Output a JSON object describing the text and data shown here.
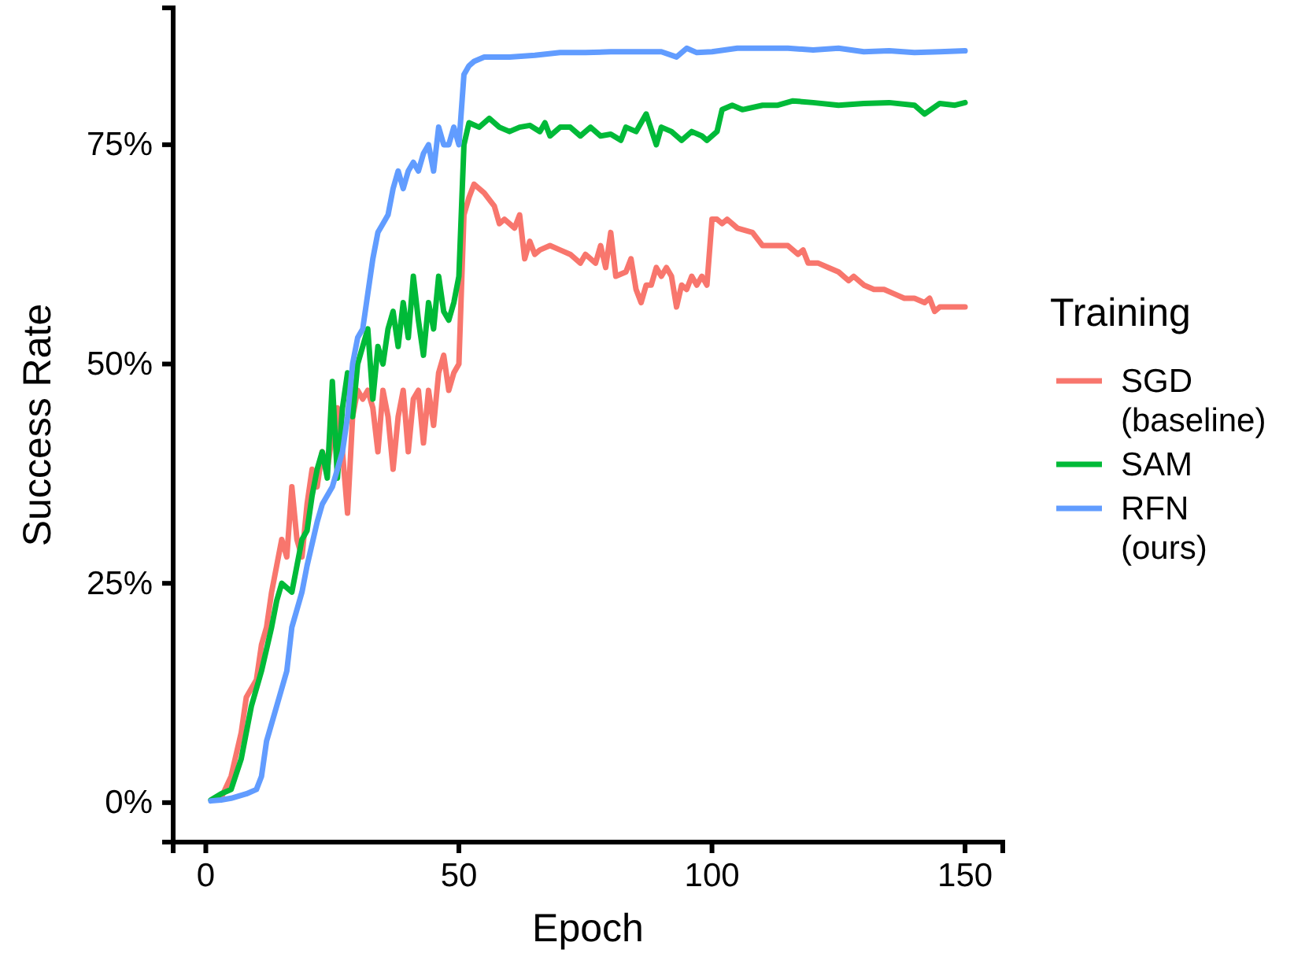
{
  "chart_data": {
    "type": "line",
    "xlabel": "Epoch",
    "ylabel": "Success Rate",
    "legend_title": "Training",
    "legend": "right",
    "grid": false,
    "marker": "none",
    "line_style": "solid",
    "xlim": [
      -6.45,
      157.45
    ],
    "xticks": [
      0,
      50,
      100,
      150
    ],
    "ylim": [
      -4.5,
      90.6
    ],
    "yticks": [
      {
        "value": 0,
        "label": "0%"
      },
      {
        "value": 25,
        "label": "25%"
      },
      {
        "value": 50,
        "label": "50%"
      },
      {
        "value": 75,
        "label": "75%"
      }
    ],
    "series": [
      {
        "name": "SGD\n(baseline)",
        "color": "#f8766d",
        "x": [
          3,
          5,
          7,
          8,
          10,
          11,
          12,
          13,
          14,
          15,
          16,
          17,
          18,
          19,
          20,
          21,
          22,
          23,
          24,
          25,
          26,
          27,
          28,
          29,
          30,
          31,
          32,
          33,
          34,
          35,
          36,
          37,
          38,
          39,
          40,
          41,
          42,
          43,
          44,
          45,
          46,
          47,
          48,
          49,
          50,
          51,
          52,
          53,
          55,
          57,
          58,
          59,
          61,
          62,
          63,
          64,
          65,
          66,
          68,
          70,
          72,
          74,
          75,
          77,
          78,
          79,
          80,
          81,
          83,
          84,
          85,
          86,
          87,
          88,
          89,
          90,
          91,
          92,
          93,
          94,
          95,
          96,
          97,
          98,
          99,
          100,
          101,
          102,
          103,
          105,
          108,
          110,
          112,
          115,
          117,
          118,
          119,
          121,
          123,
          125,
          127,
          128,
          130,
          132,
          134,
          136,
          138,
          140,
          142,
          143,
          144,
          145,
          147,
          150
        ],
        "values": [
          0.5,
          3,
          8,
          12,
          14,
          18,
          20,
          24,
          27,
          30,
          28,
          36,
          30,
          28,
          34,
          38,
          36,
          40,
          38,
          42,
          45,
          40,
          33,
          44,
          47,
          46,
          47,
          45,
          40,
          47,
          44,
          38,
          44,
          47,
          40,
          46,
          47,
          41,
          47,
          43,
          49,
          51,
          47,
          49,
          50,
          67,
          69,
          70.5,
          69.5,
          68,
          66,
          66.5,
          65.5,
          67,
          62,
          64,
          62.5,
          63,
          63.5,
          63,
          62.5,
          61.5,
          62.5,
          61.5,
          63.5,
          61,
          65,
          60,
          60.5,
          62,
          58.5,
          57,
          59,
          59,
          61,
          60,
          61,
          60,
          56.5,
          59,
          58.5,
          60,
          59,
          60,
          59,
          66.5,
          66.5,
          66,
          66.5,
          65.5,
          65,
          63.5,
          63.5,
          63.5,
          62.5,
          63,
          61.5,
          61.5,
          61,
          60.5,
          59.5,
          60,
          59,
          58.5,
          58.5,
          58,
          57.5,
          57.5,
          57,
          57.5,
          56,
          56.5,
          56.5,
          56.5
        ]
      },
      {
        "name": "SAM",
        "color": "#00ba38",
        "x": [
          1,
          3,
          5,
          7,
          9,
          11,
          13,
          14,
          15,
          17,
          18,
          19,
          20,
          21,
          22,
          23,
          24,
          25,
          26,
          27,
          28,
          29,
          30,
          31,
          32,
          33,
          34,
          35,
          36,
          37,
          38,
          39,
          40,
          41,
          42,
          43,
          44,
          45,
          46,
          47,
          48,
          49,
          50,
          51,
          52,
          54,
          56,
          58,
          60,
          62,
          64,
          66,
          67,
          68,
          70,
          72,
          74,
          76,
          78,
          80,
          82,
          83,
          85,
          87,
          89,
          90,
          92,
          94,
          96,
          98,
          99,
          101,
          102,
          104,
          106,
          110,
          113,
          116,
          120,
          125,
          130,
          135,
          140,
          142,
          145,
          148,
          150
        ],
        "values": [
          0.3,
          1,
          1.5,
          5,
          11,
          15,
          20,
          23,
          25,
          24,
          27,
          30,
          31,
          35,
          38,
          40,
          37,
          48,
          37,
          45,
          49,
          44,
          50,
          52,
          54,
          46,
          52,
          50,
          54,
          56,
          52,
          57,
          53,
          60,
          55,
          51,
          57,
          54,
          60,
          56,
          55,
          57,
          60,
          75,
          77.5,
          77,
          78,
          77,
          76.5,
          77,
          77.2,
          76.5,
          77.5,
          76,
          77,
          77,
          76,
          77,
          76,
          76.2,
          75.5,
          77,
          76.5,
          78.5,
          75,
          77,
          76.5,
          75.5,
          76.5,
          76,
          75.5,
          76.5,
          79,
          79.5,
          79,
          79.5,
          79.5,
          80,
          79.8,
          79.5,
          79.7,
          79.8,
          79.5,
          78.5,
          79.7,
          79.5,
          79.8
        ]
      },
      {
        "name": "RFN\n(ours)",
        "color": "#619cff",
        "x": [
          1,
          3,
          5,
          8,
          10,
          11,
          12,
          14,
          16,
          17,
          19,
          20,
          22,
          23,
          25,
          27,
          28,
          29,
          30,
          31,
          32,
          33,
          34,
          35,
          36,
          37,
          38,
          39,
          40,
          41,
          42,
          43,
          44,
          45,
          46,
          47,
          48,
          49,
          50,
          51,
          52,
          53,
          55,
          57,
          60,
          65,
          70,
          75,
          80,
          85,
          90,
          93,
          95,
          97,
          100,
          105,
          110,
          115,
          120,
          125,
          130,
          135,
          140,
          145,
          150
        ],
        "values": [
          0.2,
          0.3,
          0.5,
          1,
          1.5,
          3,
          7,
          11,
          15,
          20,
          24,
          27,
          32,
          34,
          36,
          40,
          44,
          50,
          53,
          54,
          58,
          62,
          65,
          66,
          67,
          70,
          72,
          70,
          72,
          73,
          72,
          74,
          75,
          72,
          77,
          75,
          75,
          77,
          75,
          83,
          84,
          84.5,
          85,
          85,
          85,
          85.2,
          85.5,
          85.5,
          85.6,
          85.6,
          85.6,
          85,
          86,
          85.5,
          85.6,
          86,
          86,
          86,
          85.8,
          86,
          85.6,
          85.7,
          85.5,
          85.6,
          85.7
        ]
      }
    ]
  }
}
